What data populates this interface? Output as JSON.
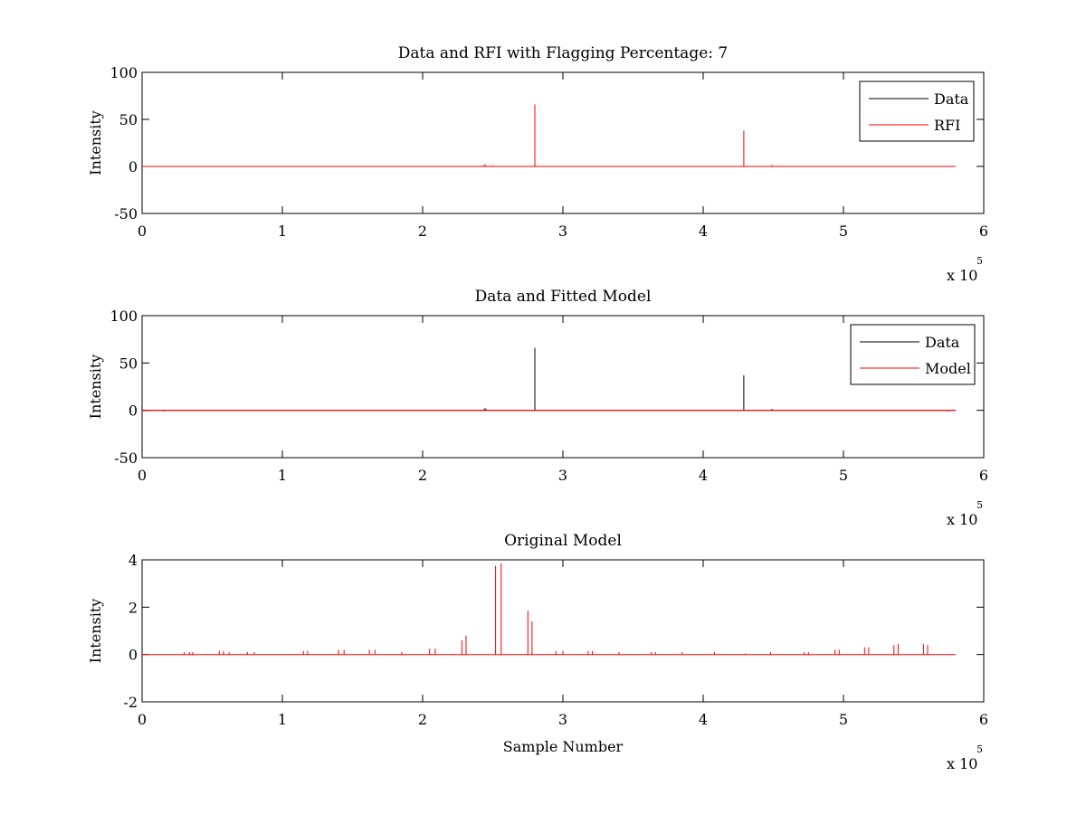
{
  "chart_data": [
    {
      "type": "line",
      "title": "Data and RFI with Flagging Percentage: 7",
      "xlabel": "",
      "ylabel": "Intensity",
      "xlim": [
        0,
        6
      ],
      "ylim": [
        -50,
        100
      ],
      "xticks": [
        "0",
        "1",
        "2",
        "3",
        "4",
        "5",
        "6"
      ],
      "yticks": [
        "-50",
        "0",
        "50",
        "100"
      ],
      "x_exponent": "x 10",
      "x_exponent_power": "5",
      "data_xmax": 5.8,
      "legend": {
        "position": "top-right",
        "entries": [
          "Data",
          "RFI"
        ]
      },
      "series": [
        {
          "name": "Data",
          "color": "#000000",
          "baseline": 0,
          "spikes": []
        },
        {
          "name": "RFI",
          "color": "#ff0000",
          "baseline": 0,
          "spikes": [
            [
              2.44,
              2
            ],
            [
              2.45,
              1.5
            ],
            [
              2.5,
              1
            ],
            [
              2.8,
              66
            ],
            [
              4.29,
              38
            ],
            [
              4.49,
              1.5
            ]
          ]
        }
      ]
    },
    {
      "type": "line",
      "title": "Data and Fitted Model",
      "xlabel": "",
      "ylabel": "Intensity",
      "xlim": [
        0,
        6
      ],
      "ylim": [
        -50,
        100
      ],
      "xticks": [
        "0",
        "1",
        "2",
        "3",
        "4",
        "5",
        "6"
      ],
      "yticks": [
        "-50",
        "0",
        "50",
        "100"
      ],
      "x_exponent": "x 10",
      "x_exponent_power": "5",
      "data_xmax": 5.8,
      "legend": {
        "position": "top-right",
        "entries": [
          "Data",
          "Model"
        ]
      },
      "series": [
        {
          "name": "Data",
          "color": "#000000",
          "baseline": 0,
          "spikes": [
            [
              0.16,
              -1
            ],
            [
              2.44,
              2
            ],
            [
              2.45,
              2
            ],
            [
              2.8,
              66
            ],
            [
              4.29,
              37
            ],
            [
              4.49,
              1.5
            ],
            [
              5.74,
              -1
            ]
          ]
        },
        {
          "name": "Model",
          "color": "#ff0000",
          "baseline": 0,
          "spikes": []
        }
      ]
    },
    {
      "type": "line",
      "title": "Original Model",
      "xlabel": "Sample Number",
      "ylabel": "Intensity",
      "xlim": [
        0,
        6
      ],
      "ylim": [
        -2,
        4
      ],
      "xticks": [
        "0",
        "1",
        "2",
        "3",
        "4",
        "5",
        "6"
      ],
      "yticks": [
        "-2",
        "0",
        "2",
        "4"
      ],
      "x_exponent": "x 10",
      "x_exponent_power": "5",
      "data_xmax": 5.8,
      "series": [
        {
          "name": "",
          "color": "#ff0000",
          "baseline": 0,
          "spikes": [
            [
              0.3,
              0.1
            ],
            [
              0.34,
              0.1
            ],
            [
              0.36,
              0.1
            ],
            [
              0.55,
              0.15
            ],
            [
              0.58,
              0.15
            ],
            [
              0.62,
              0.1
            ],
            [
              0.75,
              0.1
            ],
            [
              0.8,
              0.1
            ],
            [
              1.15,
              0.15
            ],
            [
              1.18,
              0.15
            ],
            [
              1.4,
              0.2
            ],
            [
              1.44,
              0.2
            ],
            [
              1.62,
              0.2
            ],
            [
              1.66,
              0.2
            ],
            [
              1.85,
              0.1
            ],
            [
              2.05,
              0.25
            ],
            [
              2.09,
              0.25
            ],
            [
              2.28,
              0.6
            ],
            [
              2.31,
              0.8
            ],
            [
              2.52,
              3.75
            ],
            [
              2.56,
              3.85
            ],
            [
              2.75,
              1.85
            ],
            [
              2.78,
              1.4
            ],
            [
              2.95,
              0.15
            ],
            [
              3.0,
              0.15
            ],
            [
              3.18,
              0.15
            ],
            [
              3.21,
              0.15
            ],
            [
              3.4,
              0.1
            ],
            [
              3.63,
              0.1
            ],
            [
              3.66,
              0.1
            ],
            [
              3.85,
              0.1
            ],
            [
              4.08,
              0.1
            ],
            [
              4.3,
              0.05
            ],
            [
              4.48,
              0.1
            ],
            [
              4.72,
              0.1
            ],
            [
              4.75,
              0.1
            ],
            [
              4.94,
              0.2
            ],
            [
              4.97,
              0.2
            ],
            [
              5.15,
              0.3
            ],
            [
              5.18,
              0.3
            ],
            [
              5.36,
              0.4
            ],
            [
              5.39,
              0.45
            ],
            [
              5.57,
              0.45
            ],
            [
              5.6,
              0.4
            ]
          ]
        }
      ]
    }
  ]
}
